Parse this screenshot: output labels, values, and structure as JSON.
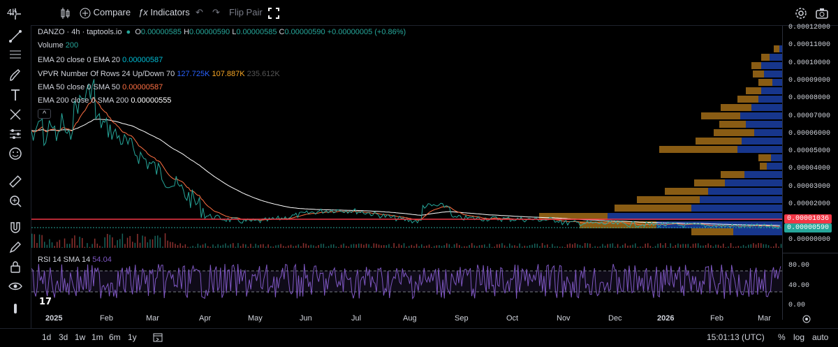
{
  "toolbar": {
    "interval": "4h",
    "compare": "Compare",
    "indicators": "Indicators",
    "flip": "Flip Pair"
  },
  "legend": {
    "symbol": "DANZO · 4h · taptools.io",
    "o_label": "O",
    "o": "0.00000585",
    "h_label": "H",
    "h": "0.00000590",
    "l_label": "L",
    "l": "0.00000585",
    "c_label": "C",
    "c": "0.00000590",
    "change": "+0.00000005 (+0.86%)",
    "volume_label": "Volume",
    "volume": "200",
    "ema20_label": "EMA 20 close 0 EMA 20",
    "ema20": "0.00000587",
    "vpvr_label": "VPVR Number Of Rows 24 Up/Down 70",
    "vpvr_up": "127.725K",
    "vpvr_down": "107.887K",
    "vpvr_total": "235.612K",
    "ema50_label": "EMA 50 close 0 SMA 50",
    "ema50": "0.00000587",
    "ema200_label": "EMA 200 close 0 SMA 200",
    "ema200": "0.00000555",
    "rsi_label": "RSI 14 SMA 14",
    "rsi": "54.04"
  },
  "price_axis": [
    "0.00012000",
    "0.00011000",
    "0.00010000",
    "0.00009000",
    "0.00008000",
    "0.00007000",
    "0.00006000",
    "0.00005000",
    "0.00004000",
    "0.00003000",
    "0.00002000",
    "0.00001000",
    "0.00000000"
  ],
  "price_badges": {
    "red": "0.00001036",
    "current": "0.00000590"
  },
  "rsi_axis": [
    "80.00",
    "40.00",
    "0.00"
  ],
  "time_axis": [
    "2025",
    "Feb",
    "Mar",
    "Apr",
    "May",
    "Jun",
    "Jul",
    "Aug",
    "Sep",
    "Oct",
    "Nov",
    "Dec",
    "2026",
    "Feb",
    "Mar"
  ],
  "bottom": {
    "ranges": [
      "1d",
      "3d",
      "1w",
      "1m",
      "6m",
      "1y"
    ],
    "clock": "15:01:13 (UTC)",
    "percent": "%",
    "log": "log",
    "auto": "auto"
  },
  "colors": {
    "up": "#26a69a",
    "down": "#ef5350",
    "ema20": "#00bcd4",
    "ema50": "#ff7043",
    "ema200": "#ffffff",
    "rsi": "#7e57c2",
    "vpvr_up": "#2962ff",
    "vpvr_down": "#f9a825"
  }
}
